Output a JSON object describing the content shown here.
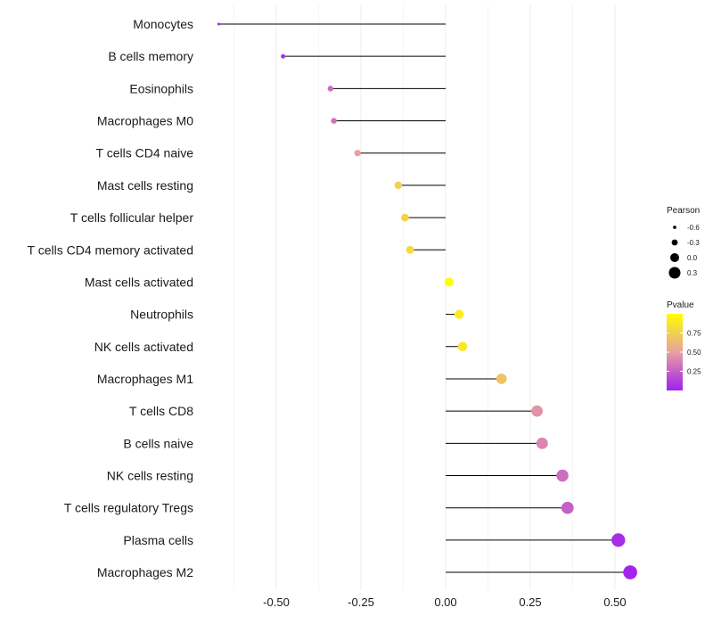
{
  "chart_data": {
    "type": "lollipop",
    "title": "",
    "xlabel": "",
    "ylabel": "",
    "xlim": [
      -0.67,
      0.55
    ],
    "x_ticks": [
      -0.5,
      -0.25,
      0.0,
      0.25,
      0.5
    ],
    "x_tick_labels": [
      "-0.50",
      "-0.25",
      "0.00",
      "0.25",
      "0.50"
    ],
    "grid": true,
    "legend_placement": "right",
    "categories": [
      "Monocytes",
      "B cells memory",
      "Eosinophils",
      "Macrophages M0",
      "T cells CD4 naive",
      "Mast cells resting",
      "T cells follicular helper",
      "T cells CD4 memory activated",
      "Mast cells activated",
      "Neutrophils",
      "NK cells activated",
      "Macrophages M1",
      "T cells CD8",
      "B cells naive",
      "NK cells resting",
      "T cells regulatory  Tregs ",
      "Plasma cells",
      "Macrophages M2"
    ],
    "values": [
      -0.67,
      -0.48,
      -0.34,
      -0.33,
      -0.26,
      -0.14,
      -0.12,
      -0.105,
      0.01,
      0.04,
      0.05,
      0.165,
      0.27,
      0.285,
      0.345,
      0.36,
      0.51,
      0.545
    ],
    "pvalues": [
      0.01,
      0.06,
      0.3,
      0.32,
      0.5,
      0.75,
      0.77,
      0.8,
      0.99,
      0.9,
      0.88,
      0.68,
      0.45,
      0.4,
      0.3,
      0.25,
      0.05,
      0.02
    ],
    "size_legend": {
      "title": "Pearson",
      "values": [
        -0.6,
        -0.3,
        0.0,
        0.3
      ],
      "labels": [
        "-0.6",
        "-0.3",
        "0.0",
        "0.3"
      ]
    },
    "color_legend": {
      "title": "Pvalue",
      "range": [
        0,
        1
      ],
      "tick_values": [
        0.25,
        0.5,
        0.75
      ],
      "tick_labels": [
        "0.25",
        "0.50",
        "0.75"
      ],
      "low_color": "#a020f0",
      "mid_color": "#e8a0a0",
      "high_color": "#ffff00"
    }
  }
}
